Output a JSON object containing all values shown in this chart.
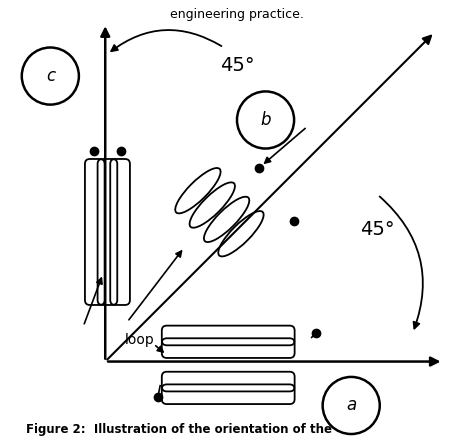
{
  "title_top": "engineering practice.",
  "title_bottom": "Figure 2:  Illustration of the orientation of the",
  "background_color": "#ffffff",
  "label_a": "a",
  "label_b": "b",
  "label_c": "c",
  "label_loop": "loop",
  "angle_label_45_upper": "45°",
  "angle_label_45_lower": "45°",
  "ox": 0.2,
  "oy": 0.18
}
